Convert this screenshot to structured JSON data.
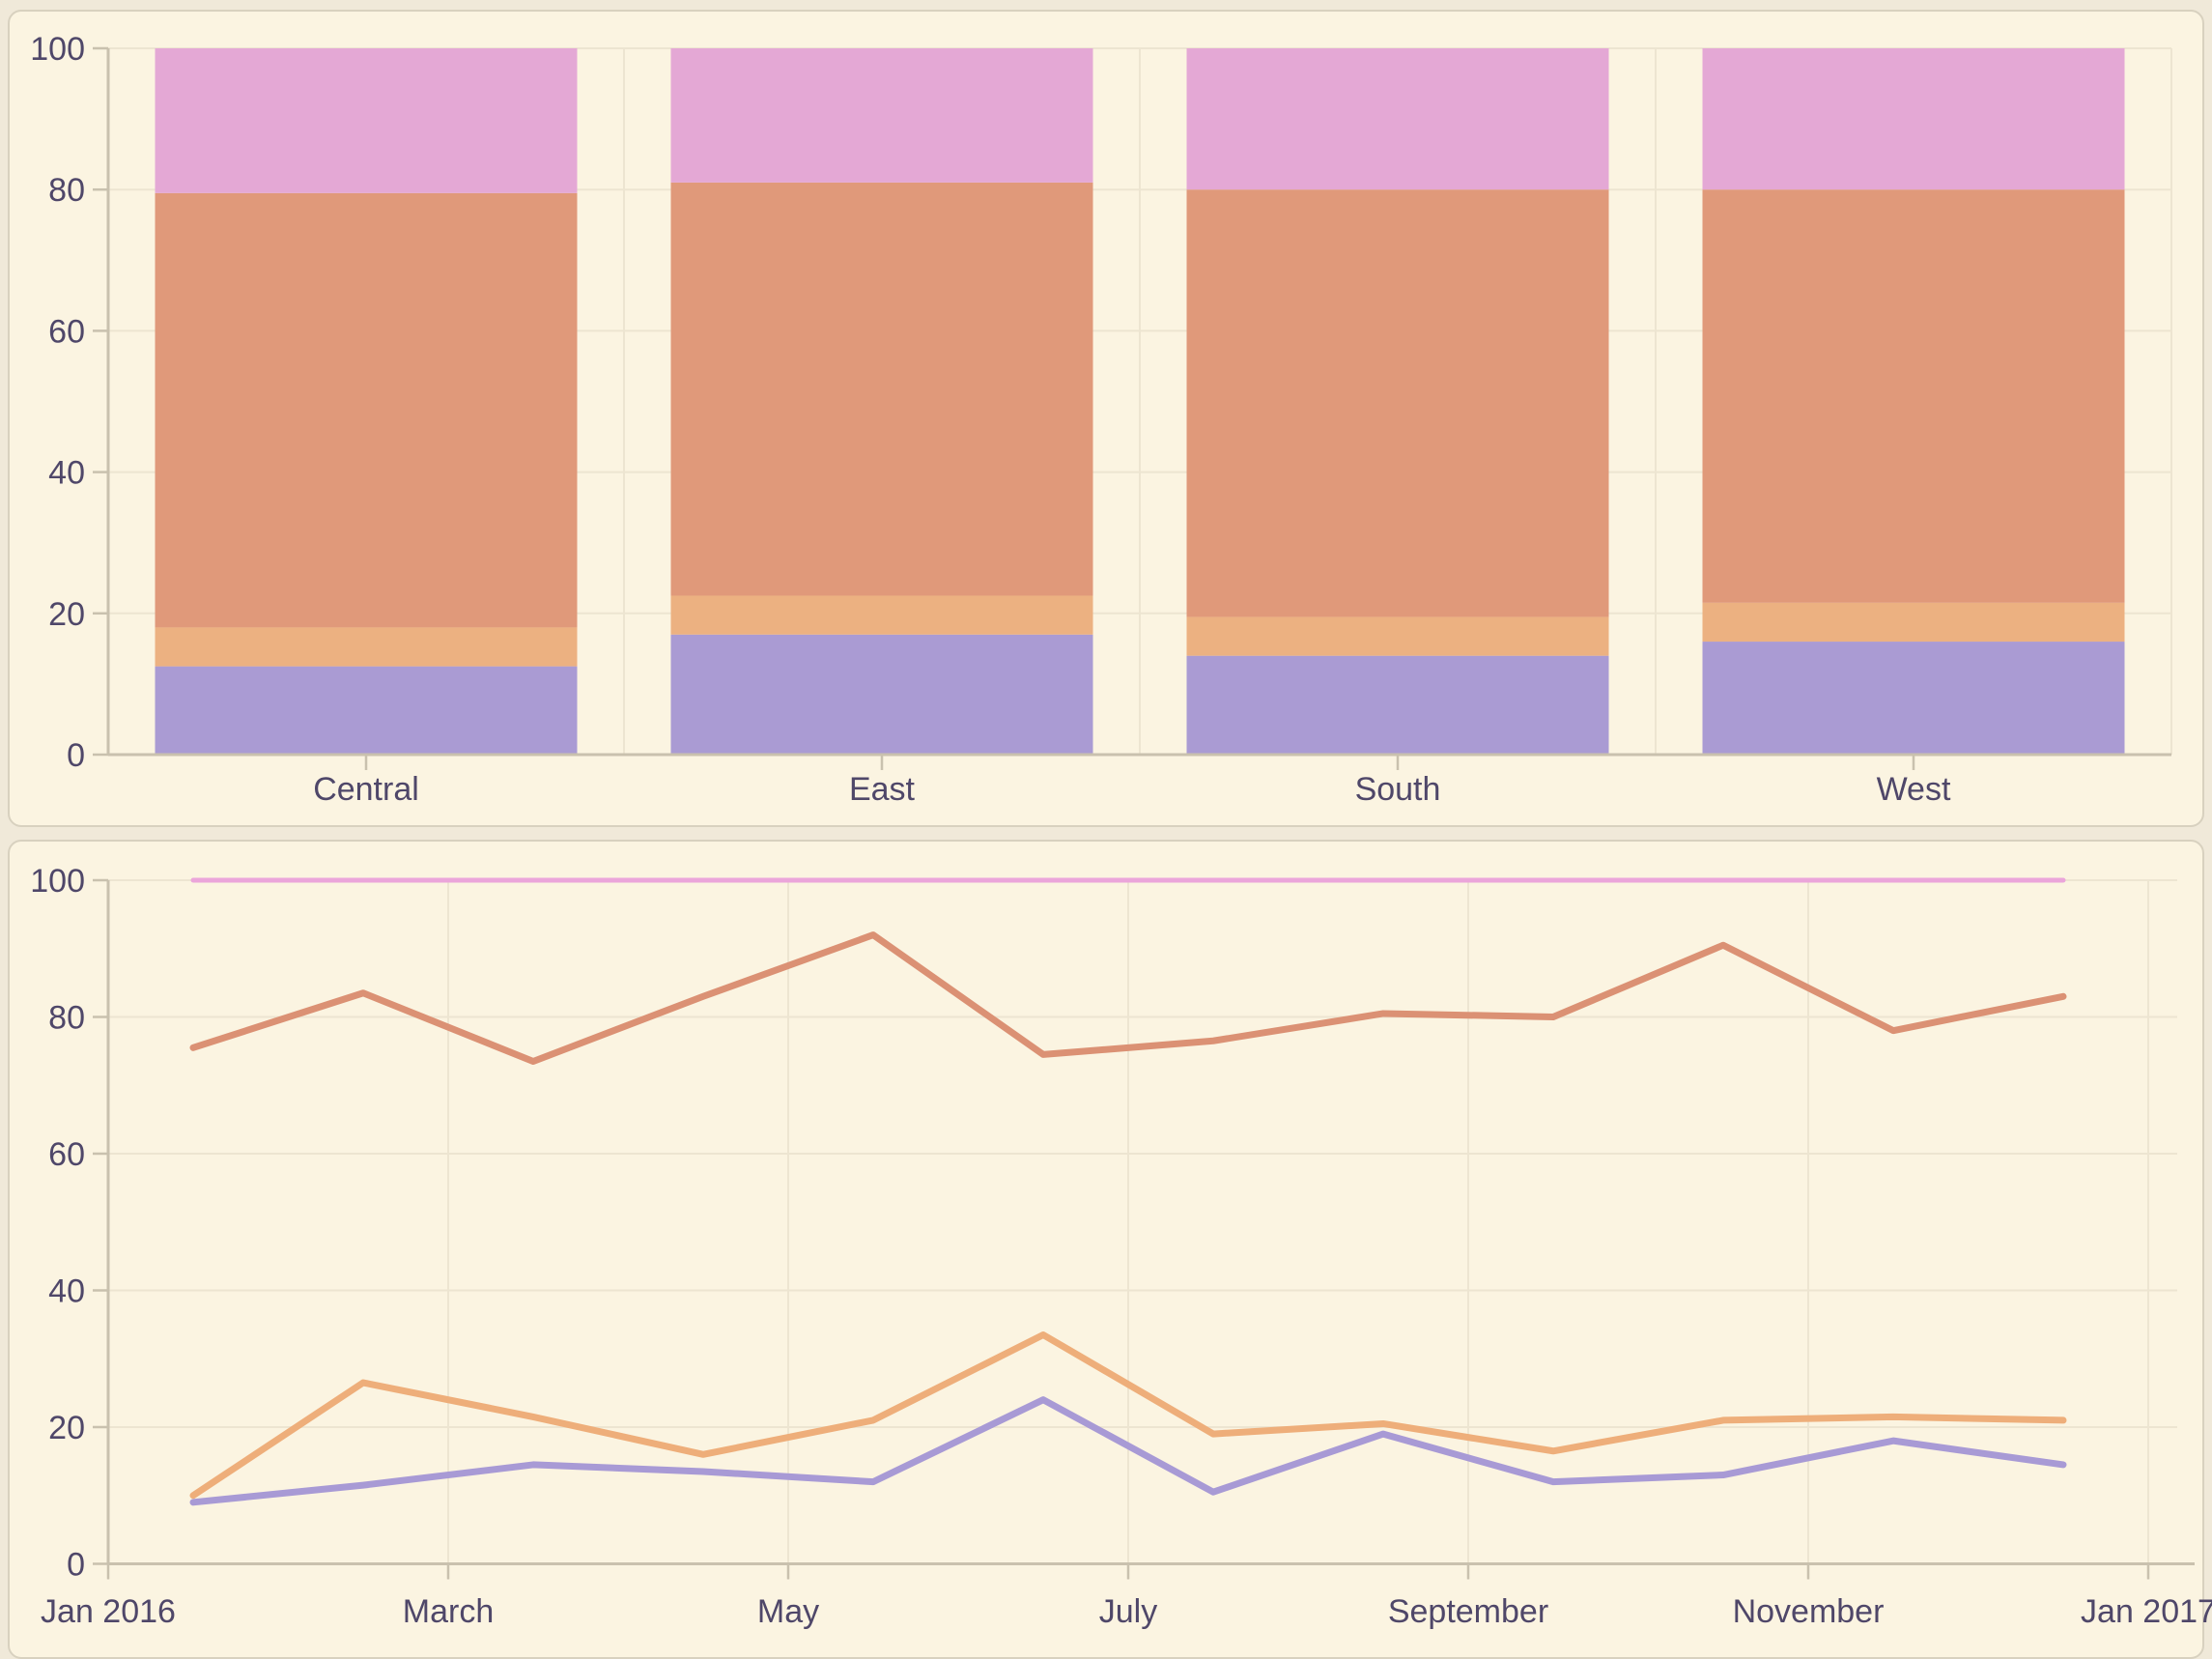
{
  "page": {
    "background": "#f0e9d9",
    "card_background": "#fbf4e1",
    "card_border": "#d8d1bf",
    "text_color": "#4f4769",
    "grid_color": "#ede5d1",
    "axis_color": "#c9c1ae"
  },
  "chart_data": [
    {
      "type": "bar",
      "stacked": true,
      "title": "",
      "categories": [
        "Central",
        "East",
        "South",
        "West"
      ],
      "series": [
        {
          "name": "purple",
          "color": "#aa9bd3",
          "values": [
            12.5,
            17,
            14,
            16
          ]
        },
        {
          "name": "orange",
          "color": "#ecb181",
          "values": [
            5.5,
            5.5,
            5.5,
            5.5
          ]
        },
        {
          "name": "salmon",
          "color": "#e0997a",
          "values": [
            61.5,
            58.5,
            60.5,
            58.5
          ]
        },
        {
          "name": "pink",
          "color": "#e4a8d5",
          "values": [
            20.5,
            19,
            20,
            20
          ]
        }
      ],
      "xlabel": "",
      "ylabel": "",
      "ylim": [
        0,
        100
      ],
      "yticks": [
        0,
        20,
        40,
        60,
        80,
        100
      ],
      "grid": true,
      "legend": false
    },
    {
      "type": "line",
      "title": "",
      "x_tick_labels": [
        "Jan 2016",
        "March",
        "May",
        "July",
        "September",
        "November",
        "Jan 2017"
      ],
      "points_per_series": 12,
      "series": [
        {
          "name": "pink",
          "color": "#eba5da",
          "values": [
            100,
            100,
            100,
            100,
            100,
            100,
            100,
            100,
            100,
            100,
            100,
            100
          ]
        },
        {
          "name": "salmon",
          "color": "#db9174",
          "values": [
            75.5,
            83.5,
            73.5,
            83,
            92,
            74.5,
            76.5,
            80.5,
            80,
            90.5,
            78,
            83
          ]
        },
        {
          "name": "orange",
          "color": "#eeae7a",
          "values": [
            10,
            26.5,
            21.5,
            16,
            21,
            33.5,
            19,
            20.5,
            16.5,
            21,
            21.5,
            21
          ]
        },
        {
          "name": "purple",
          "color": "#a89ad5",
          "values": [
            9,
            11.5,
            14.5,
            13.5,
            12,
            24,
            10.5,
            19,
            12,
            13,
            18,
            14.5
          ]
        }
      ],
      "xlabel": "",
      "ylabel": "",
      "ylim": [
        0,
        100
      ],
      "yticks": [
        0,
        20,
        40,
        60,
        80,
        100
      ],
      "grid": true,
      "legend": false
    }
  ]
}
